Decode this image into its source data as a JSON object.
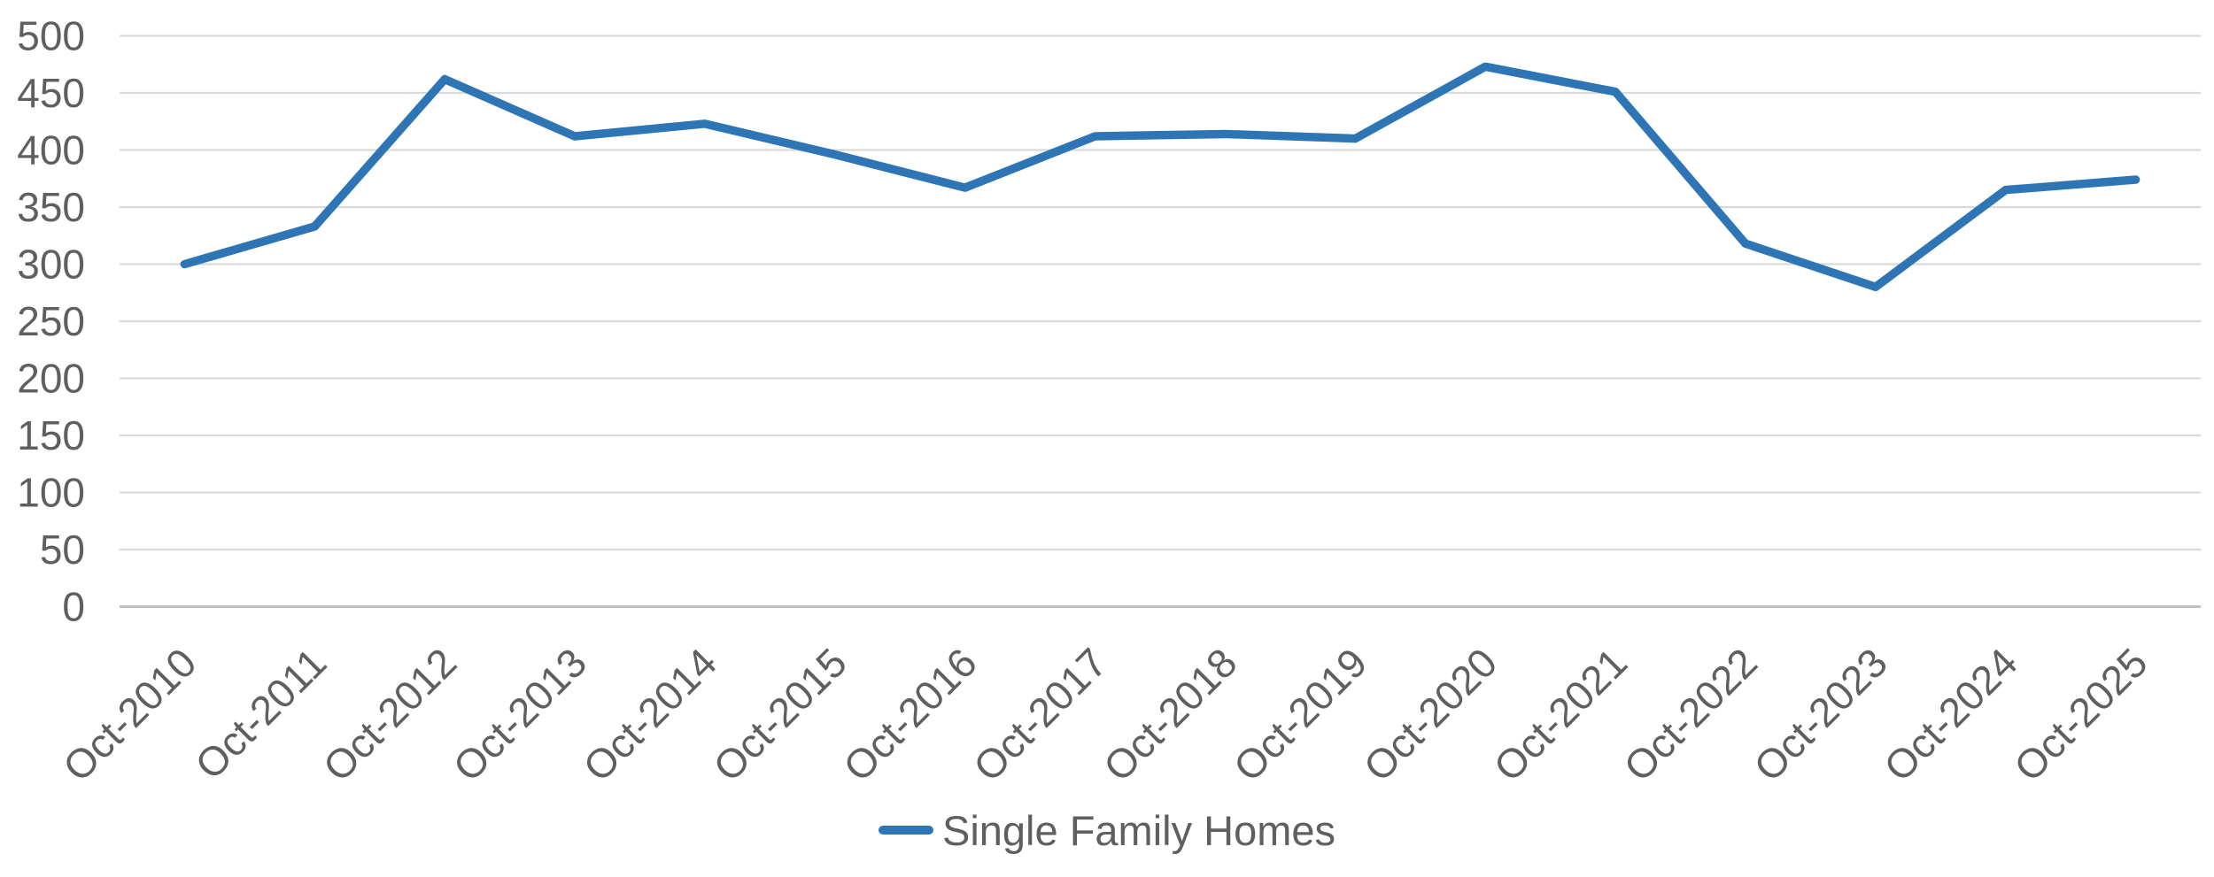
{
  "chart_data": {
    "type": "line",
    "title": "",
    "xlabel": "",
    "ylabel": "",
    "categories": [
      "Oct-2010",
      "Oct-2011",
      "Oct-2012",
      "Oct-2013",
      "Oct-2014",
      "Oct-2015",
      "Oct-2016",
      "Oct-2017",
      "Oct-2018",
      "Oct-2019",
      "Oct-2020",
      "Oct-2021",
      "Oct-2022",
      "Oct-2023",
      "Oct-2024",
      "Oct-2025"
    ],
    "series": [
      {
        "name": "Single Family Homes",
        "values": [
          300,
          333,
          462,
          412,
          423,
          396,
          367,
          412,
          414,
          410,
          473,
          451,
          318,
          280,
          365,
          374
        ],
        "color": "#2E75B6"
      }
    ],
    "ylim": [
      0,
      500
    ],
    "ytick_step": 50,
    "y_tick_labels": [
      "500",
      "450",
      "400",
      "350",
      "300",
      "250",
      "200",
      "150",
      "100",
      "50",
      "0"
    ],
    "grid": "horizontal",
    "legend_position": "bottom-center",
    "colors": {
      "line": "#2E75B6",
      "gridline": "#d9d9d9",
      "axis_line": "#bfbfbf",
      "tick_text": "#5f5f5f"
    }
  }
}
